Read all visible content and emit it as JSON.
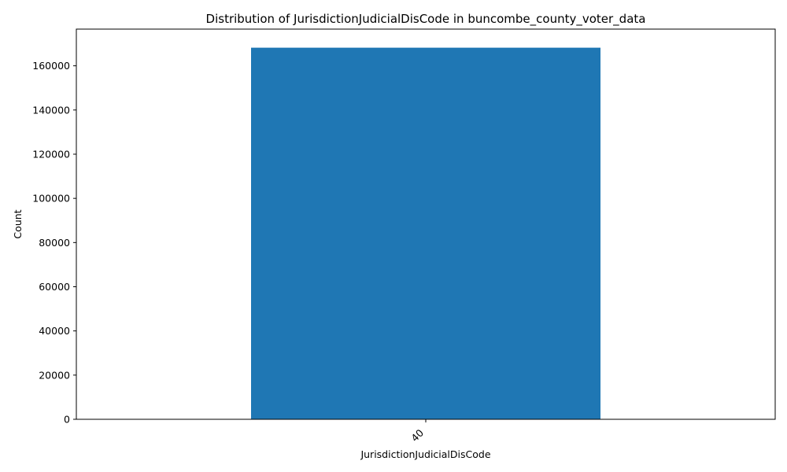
{
  "chart_data": {
    "type": "bar",
    "title": "Distribution of JurisdictionJudicialDisCode in buncombe_county_voter_data",
    "xlabel": "JurisdictionJudicialDisCode",
    "ylabel": "Count",
    "categories": [
      "40"
    ],
    "values": [
      168200
    ],
    "ylim": [
      0,
      176610
    ],
    "yticks": [
      0,
      20000,
      40000,
      60000,
      80000,
      100000,
      120000,
      140000,
      160000
    ],
    "ytick_labels": [
      "0",
      "20000",
      "40000",
      "60000",
      "80000",
      "100000",
      "120000",
      "140000",
      "160000"
    ],
    "bar_color": "#1f77b4",
    "grid": false,
    "legend": "none"
  }
}
